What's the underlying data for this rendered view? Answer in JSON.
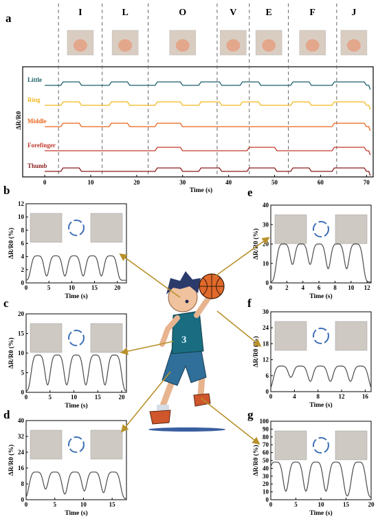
{
  "panel_labels": {
    "a": "a",
    "b": "b",
    "c": "c",
    "d": "d",
    "e": "e",
    "f": "f",
    "g": "g"
  },
  "gestures": [
    "I",
    "L",
    "O",
    "V",
    "E",
    "F",
    "J"
  ],
  "colors": {
    "little": "#1b5e6b",
    "ring": "#f2b71f",
    "middle": "#e8641b",
    "forefinger": "#c0392b",
    "thumb": "#8b1a1a",
    "arrow": "#b8912a",
    "curve": "#4a4a4a"
  },
  "chart_data": [
    {
      "id": "a",
      "type": "line",
      "xlabel": "Time (s)",
      "ylabel": "ΔR/R0",
      "xlim": [
        -3,
        71
      ],
      "xticks": [
        0,
        10,
        20,
        30,
        40,
        50,
        60,
        70
      ],
      "gesture_boundaries": [
        3,
        12.5,
        22.5,
        37.5,
        44.5,
        53,
        63.5
      ],
      "series": [
        {
          "name": "Little",
          "color": "#1b5e6b",
          "active": [
            [
              3.5,
              8
            ],
            [
              14,
              18.5
            ],
            [
              24,
              30
            ],
            [
              33.5,
              38.5
            ],
            [
              42.5,
              47
            ],
            [
              53.5,
              58
            ],
            [
              62.5,
              70
            ]
          ]
        },
        {
          "name": "Ring",
          "color": "#f2b71f",
          "active": [
            [
              3.5,
              8
            ],
            [
              14,
              18.5
            ],
            [
              24,
              30
            ],
            [
              33.5,
              38.5
            ],
            [
              42.5,
              47
            ],
            [
              53.5,
              58
            ],
            [
              62.5,
              70
            ]
          ]
        },
        {
          "name": "Middle",
          "color": "#e8641b",
          "active": [
            [
              3.5,
              8
            ],
            [
              14,
              18.5
            ],
            [
              24,
              30
            ],
            [
              62.5,
              70
            ]
          ]
        },
        {
          "name": "Forefinger",
          "color": "#c0392b",
          "active": [
            [
              24,
              30
            ],
            [
              44,
              50.5
            ],
            [
              62.5,
              70
            ]
          ]
        },
        {
          "name": "Thumb",
          "color": "#8b1a1a",
          "active": [
            [
              3.5,
              8
            ],
            [
              24,
              30
            ],
            [
              33.5,
              38.5
            ],
            [
              44,
              50.5
            ],
            [
              53.5,
              58
            ],
            [
              62.5,
              70
            ]
          ]
        }
      ]
    },
    {
      "id": "b",
      "type": "line",
      "xlabel": "Time (s)",
      "ylabel": "ΔR/R0 (%)",
      "xlim": [
        0,
        22
      ],
      "ylim": [
        0,
        12
      ],
      "xticks": [
        0,
        5,
        10,
        15,
        20
      ],
      "yticks": [
        0,
        2,
        4,
        6,
        8,
        10,
        12
      ],
      "peaks": [
        2.5,
        6.5,
        10.5,
        14.5,
        18.5
      ],
      "high": 4.1,
      "low": 0.4,
      "width": 1.6
    },
    {
      "id": "c",
      "type": "line",
      "xlabel": "Time (s)",
      "ylabel": "ΔR/R0 (%)",
      "xlim": [
        0,
        21
      ],
      "ylim": [
        0,
        20
      ],
      "xticks": [
        0,
        5,
        10,
        15,
        20
      ],
      "yticks": [
        0,
        5,
        10,
        15,
        20
      ],
      "peaks": [
        2.5,
        6.5,
        10.5,
        14.5,
        18.5
      ],
      "high": 9.5,
      "low": 0.3,
      "width": 1.6
    },
    {
      "id": "d",
      "type": "line",
      "xlabel": "Time (s)",
      "ylabel": "ΔR/R0 (%)",
      "xlim": [
        0,
        17.5
      ],
      "ylim": [
        0,
        40
      ],
      "xticks": [
        0,
        5,
        10,
        15
      ],
      "yticks": [
        0,
        8,
        16,
        24,
        32,
        40
      ],
      "peaks": [
        1.8,
        5,
        8.5,
        11.8,
        15.2
      ],
      "high": 14,
      "low": 0.5,
      "width": 1.4
    },
    {
      "id": "e",
      "type": "line",
      "xlabel": "Time (s)",
      "ylabel": "ΔR/R0 (%)",
      "xlim": [
        0,
        12.5
      ],
      "ylim": [
        0,
        40
      ],
      "xticks": [
        0,
        2,
        4,
        6,
        8,
        10,
        12
      ],
      "yticks": [
        0,
        10,
        20,
        30,
        40
      ],
      "peaks": [
        1.6,
        3.8,
        6,
        8.3,
        10.6
      ],
      "high": 20,
      "low": 0.5,
      "width": 1.0
    },
    {
      "id": "f",
      "type": "line",
      "xlabel": "Time (s)",
      "ylabel": "ΔR/R0 (%)",
      "xlim": [
        0,
        17
      ],
      "ylim": [
        0,
        30
      ],
      "xticks": [
        0,
        4,
        8,
        12,
        16
      ],
      "yticks": [
        0,
        6,
        12,
        18,
        24,
        30
      ],
      "peaks": [
        1.8,
        5,
        8.4,
        11.8,
        15.2
      ],
      "high": 9.6,
      "low": 0.3,
      "width": 1.5
    },
    {
      "id": "g",
      "type": "line",
      "xlabel": "Time (s)",
      "ylabel": "ΔR/R0 (%)",
      "xlim": [
        0,
        20
      ],
      "ylim": [
        0,
        100
      ],
      "xticks": [
        0,
        5,
        10,
        15,
        20
      ],
      "yticks": [
        0,
        10,
        20,
        30,
        40,
        50,
        60,
        70,
        80,
        90,
        100
      ],
      "peaks": [
        1,
        5,
        9,
        13,
        17.5
      ],
      "high": 48,
      "low": 3,
      "width": 1.6
    }
  ]
}
